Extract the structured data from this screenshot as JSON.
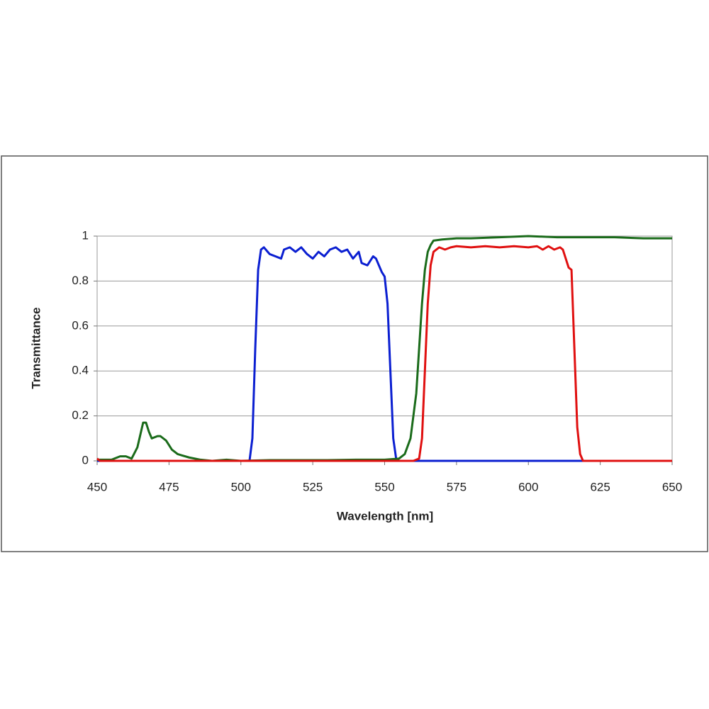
{
  "chart_data": {
    "type": "line",
    "x_label": "Wavelength [nm]",
    "y_label": "Transmittance",
    "xlim": [
      450,
      650
    ],
    "xticks": [
      450,
      475,
      500,
      525,
      550,
      575,
      600,
      625,
      650
    ],
    "ylim": [
      0,
      1
    ],
    "yticks": [
      0,
      0.2,
      0.4,
      0.6,
      0.8,
      1
    ],
    "grid": true,
    "series": [
      {
        "color": "#0b1fd1",
        "x": [
          450,
          503,
          504,
          505,
          506,
          507,
          508,
          510,
          512,
          514,
          515,
          517,
          519,
          521,
          523,
          525,
          527,
          529,
          531,
          533,
          535,
          537,
          539,
          541,
          542,
          544,
          546,
          547,
          549,
          550,
          551,
          552,
          553,
          554,
          555,
          650
        ],
        "values": [
          0,
          0,
          0.1,
          0.5,
          0.85,
          0.94,
          0.95,
          0.92,
          0.91,
          0.9,
          0.94,
          0.95,
          0.93,
          0.95,
          0.92,
          0.9,
          0.93,
          0.91,
          0.94,
          0.95,
          0.93,
          0.94,
          0.9,
          0.93,
          0.88,
          0.87,
          0.91,
          0.9,
          0.84,
          0.82,
          0.7,
          0.4,
          0.1,
          0.01,
          0,
          0
        ]
      },
      {
        "color": "#1a6b1a",
        "x": [
          450,
          455,
          458,
          460,
          462,
          464,
          466,
          467,
          468,
          469,
          471,
          472,
          474,
          476,
          478,
          482,
          486,
          490,
          495,
          500,
          510,
          530,
          540,
          550,
          555,
          557,
          559,
          561,
          562,
          563,
          564,
          565,
          566,
          567,
          570,
          575,
          580,
          590,
          600,
          610,
          620,
          630,
          640,
          650
        ],
        "values": [
          0.005,
          0.005,
          0.02,
          0.02,
          0.01,
          0.06,
          0.17,
          0.17,
          0.13,
          0.1,
          0.11,
          0.11,
          0.09,
          0.05,
          0.03,
          0.015,
          0.005,
          0,
          0.005,
          0,
          0.003,
          0.003,
          0.005,
          0.005,
          0.01,
          0.03,
          0.1,
          0.3,
          0.5,
          0.7,
          0.85,
          0.93,
          0.96,
          0.98,
          0.985,
          0.99,
          0.99,
          0.995,
          1,
          0.995,
          0.995,
          0.995,
          0.99,
          0.99
        ]
      },
      {
        "color": "#e01010",
        "x": [
          450,
          451,
          560,
          562,
          563,
          564,
          565,
          566,
          567,
          569,
          571,
          573,
          575,
          580,
          585,
          590,
          595,
          600,
          603,
          605,
          607,
          609,
          611,
          612,
          613,
          614,
          615,
          616,
          617,
          618,
          619,
          650
        ],
        "values": [
          0.01,
          0,
          0,
          0.01,
          0.1,
          0.4,
          0.7,
          0.87,
          0.93,
          0.95,
          0.94,
          0.95,
          0.955,
          0.95,
          0.955,
          0.95,
          0.955,
          0.95,
          0.955,
          0.94,
          0.955,
          0.94,
          0.95,
          0.94,
          0.9,
          0.86,
          0.85,
          0.5,
          0.15,
          0.03,
          0,
          0
        ]
      }
    ]
  }
}
